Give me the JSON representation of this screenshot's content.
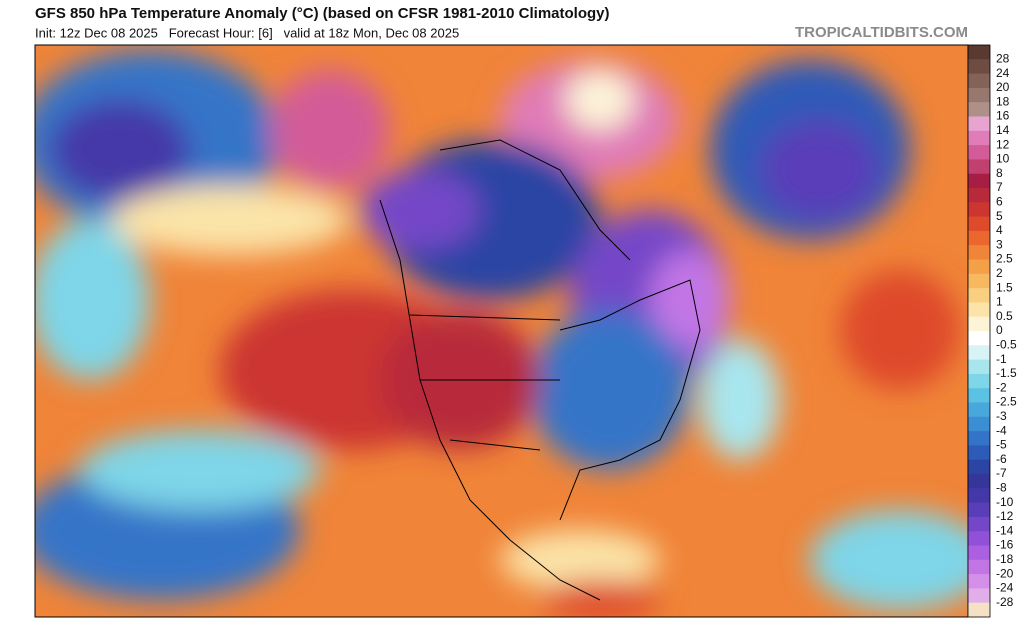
{
  "header": {
    "title": "GFS 850 hPa Temperature Anomaly (°C) (based on CFSR 1981-2010 Climatology)",
    "subtitle": "Init: 12z Dec 08 2025   Forecast Hour: [6]   valid at 18z Mon, Dec 08 2025",
    "watermark": "TROPICALTIDBITS.COM"
  },
  "colorbar": {
    "labels": [
      "28",
      "24",
      "20",
      "18",
      "16",
      "14",
      "12",
      "10",
      "8",
      "7",
      "6",
      "5",
      "4",
      "3",
      "2.5",
      "2",
      "1.5",
      "1",
      "0.5",
      "0",
      "-0.5",
      "-1",
      "-1.5",
      "-2",
      "-2.5",
      "-3",
      "-4",
      "-5",
      "-6",
      "-7",
      "-8",
      "-10",
      "-12",
      "-14",
      "-16",
      "-18",
      "-20",
      "-24",
      "-28"
    ],
    "colors": [
      "#5a3a30",
      "#6e4c42",
      "#836258",
      "#98786e",
      "#ae9089",
      "#e8a4d0",
      "#e07cb8",
      "#d35c98",
      "#c04070",
      "#a61e44",
      "#b82a3a",
      "#cc3530",
      "#de4a2a",
      "#ea6830",
      "#f08438",
      "#f4a048",
      "#f7b860",
      "#f9cf80",
      "#fbe4a8",
      "#fdf4d8",
      "#ffffff",
      "#d8f3f5",
      "#a8e6ee",
      "#7ed6e8",
      "#5cc2e4",
      "#48a8dc",
      "#3c8ed4",
      "#3474c8",
      "#2e5ab8",
      "#2c44a4",
      "#34369a",
      "#4438a8",
      "#5a3eb8",
      "#7446c8",
      "#9050d8",
      "#aa60e0",
      "#c276e6",
      "#d490e8",
      "#e2aeea",
      "#f5e2c4"
    ]
  }
}
